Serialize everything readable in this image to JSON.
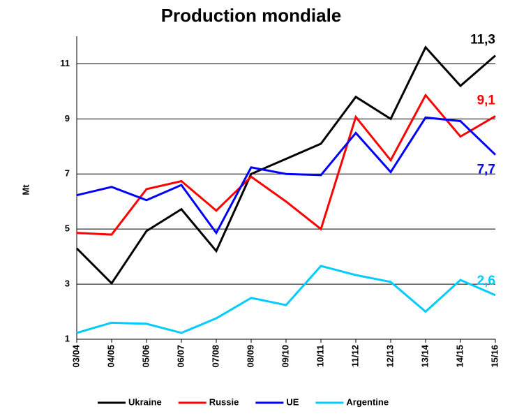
{
  "chart_data": {
    "type": "line",
    "title": "Production mondiale",
    "y_label": "Mt",
    "categories": [
      "03/04",
      "04/05",
      "05/06",
      "06/07",
      "07/08",
      "08/09",
      "09/10",
      "10/11",
      "11/12",
      "12/13",
      "13/14",
      "14/15",
      "15/16"
    ],
    "series": [
      {
        "name": "Ukraine",
        "color": "#000000",
        "values": [
          4.3,
          3.03,
          4.93,
          5.72,
          4.2,
          7.0,
          7.55,
          8.1,
          9.8,
          9.0,
          11.6,
          10.2,
          11.3
        ],
        "value_labels": [
          null,
          null,
          null,
          null,
          null,
          null,
          null,
          null,
          null,
          null,
          null,
          null,
          "11,3"
        ]
      },
      {
        "name": "Russie",
        "color": "#ff0000",
        "values": [
          4.86,
          4.8,
          6.45,
          6.74,
          5.67,
          6.9,
          6.0,
          5.0,
          9.07,
          7.5,
          9.86,
          8.36,
          9.1
        ],
        "value_labels": [
          null,
          null,
          null,
          null,
          null,
          null,
          null,
          null,
          null,
          null,
          null,
          null,
          "9,1"
        ]
      },
      {
        "name": "UE",
        "color": "#0000ff",
        "values": [
          6.23,
          6.53,
          6.05,
          6.6,
          4.86,
          7.24,
          7.0,
          6.96,
          8.49,
          7.07,
          9.05,
          8.92,
          7.7
        ],
        "value_labels": [
          null,
          null,
          null,
          null,
          null,
          null,
          null,
          null,
          null,
          null,
          null,
          null,
          "7,7"
        ]
      },
      {
        "name": "Argentine",
        "color": "#00ccff",
        "values": [
          1.23,
          1.6,
          1.56,
          1.23,
          1.76,
          2.5,
          2.24,
          3.66,
          3.33,
          3.08,
          2.0,
          3.15,
          2.6
        ],
        "value_labels": [
          null,
          null,
          null,
          null,
          null,
          null,
          null,
          null,
          null,
          null,
          null,
          null,
          "2,6"
        ]
      }
    ],
    "ylim": [
      1,
      12
    ],
    "yticks": [
      1,
      3,
      5,
      7,
      9,
      11
    ],
    "grid": true
  }
}
